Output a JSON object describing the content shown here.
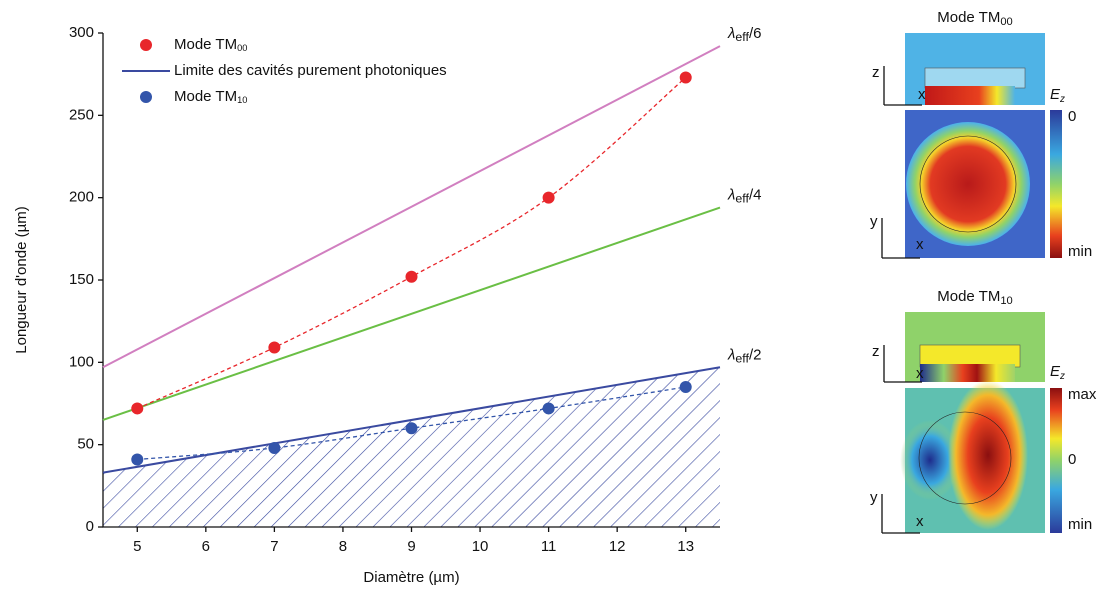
{
  "chart_data": {
    "type": "scatter",
    "xlabel": "Diamètre (µm)",
    "ylabel": "Longueur d'onde (µm)",
    "xlim": [
      4.5,
      13.5
    ],
    "xticks": [
      5,
      6,
      7,
      8,
      9,
      10,
      11,
      12,
      13
    ],
    "ylim": [
      0,
      300
    ],
    "yticks": [
      0,
      50,
      100,
      150,
      200,
      250,
      300
    ],
    "series": [
      {
        "name": "Mode TM",
        "name_sub": "00",
        "style": "markers",
        "fit": "dashed",
        "color": "#e8262b",
        "x": [
          5,
          7,
          9,
          11,
          13
        ],
        "values": [
          72,
          109,
          152,
          200,
          273
        ]
      },
      {
        "name": "Limite des cavités purement photoniques",
        "style": "line",
        "hatch": true,
        "color": "#3a4aa0",
        "x": [
          4.5,
          13.5
        ],
        "values": [
          33,
          97
        ],
        "label": "λ",
        "label_sub": "eff",
        "label_suffix": "/2"
      },
      {
        "name": "Mode TM",
        "name_sub": "10",
        "style": "markers",
        "fit": "dashed",
        "color": "#3355aa",
        "x": [
          5,
          7,
          9,
          11,
          13
        ],
        "values": [
          41,
          48,
          60,
          72,
          85
        ]
      }
    ],
    "lines": [
      {
        "color": "#d17fc0",
        "x": [
          4.5,
          13.5
        ],
        "values": [
          97,
          292
        ],
        "label": "λ",
        "label_sub": "eff",
        "label_suffix": "/6"
      },
      {
        "color": "#6abf45",
        "x": [
          4.5,
          13.5
        ],
        "values": [
          65,
          194
        ],
        "label": "λ",
        "label_sub": "eff",
        "label_suffix": "/4"
      }
    ]
  },
  "panels": [
    {
      "title": "Mode TM",
      "title_sub": "00",
      "z": "z",
      "x1": "x",
      "y": "y",
      "x2": "x",
      "field": "E",
      "field_sub": "z",
      "scale": [
        "0",
        "min"
      ]
    },
    {
      "title": "Mode TM",
      "title_sub": "10",
      "z": "z",
      "x1": "x",
      "y": "y",
      "x2": "x",
      "field": "E",
      "field_sub": "z",
      "scale": [
        "max",
        "0",
        "min"
      ]
    }
  ]
}
